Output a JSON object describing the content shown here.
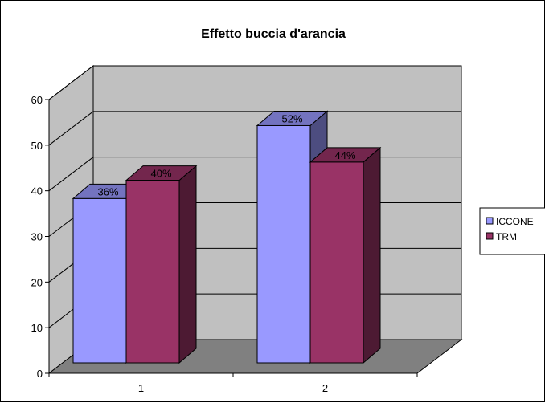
{
  "chart_data": {
    "type": "bar",
    "title": "Effetto buccia d'arancia",
    "xlabel": "",
    "ylabel": "",
    "categories": [
      "1",
      "2"
    ],
    "series": [
      {
        "name": "ICCONE",
        "values": [
          36,
          52
        ],
        "labels": [
          "36%",
          "52%"
        ],
        "color": "#9999ff"
      },
      {
        "name": "TRM",
        "values": [
          40,
          44
        ],
        "labels": [
          "40%",
          "44%"
        ],
        "color": "#993366"
      }
    ],
    "ylim": [
      0,
      60
    ],
    "yticks": [
      "0",
      "10",
      "20",
      "30",
      "40",
      "50",
      "60"
    ],
    "grid": true,
    "legend": "right",
    "three_d": true,
    "colors": {
      "wall": "#c0c0c0",
      "floor": "#808080",
      "gridline": "#000000"
    }
  }
}
